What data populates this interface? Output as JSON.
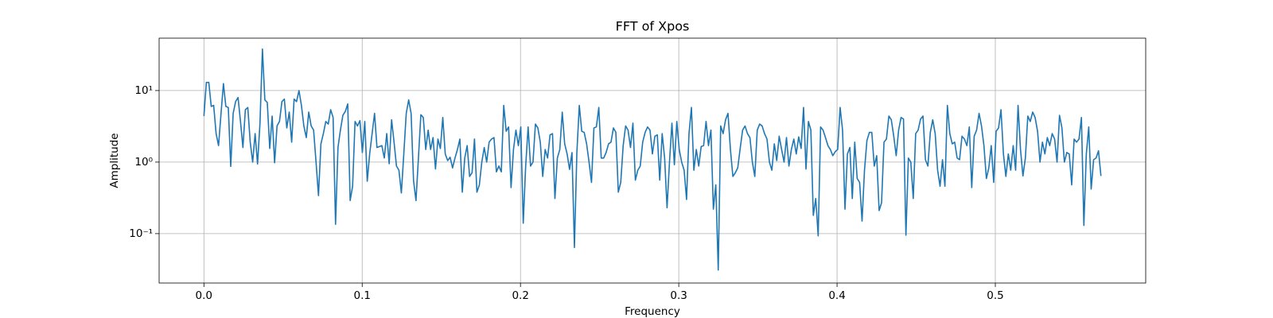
{
  "chart_data": {
    "type": "line",
    "title": "FFT of Xpos",
    "x_label": "Frequency",
    "y_label": "Amplitude",
    "yscale": "log",
    "grid": true,
    "xlim": [
      -0.0283,
      0.595
    ],
    "ylim": [
      0.0204,
      54
    ],
    "xticks": [
      {
        "value": 0,
        "label": "0.0"
      },
      {
        "value": 0.1,
        "label": "0.1"
      },
      {
        "value": 0.2,
        "label": "0.2"
      },
      {
        "value": 0.3,
        "label": "0.3"
      },
      {
        "value": 0.4,
        "label": "0.4"
      },
      {
        "value": 0.5,
        "label": "0.5"
      }
    ],
    "yticks": [
      {
        "value": 0.1,
        "label": "10⁻¹"
      },
      {
        "value": 1,
        "label": "10⁰"
      },
      {
        "value": 10,
        "label": "10¹"
      }
    ],
    "x": [
      0,
      0.00154,
      0.00308,
      0.00462,
      0.00616,
      0.0077,
      0.00924,
      0.01078,
      0.01232,
      0.01386,
      0.0154,
      0.01694,
      0.01848,
      0.02002,
      0.02156,
      0.0231,
      0.02464,
      0.02618,
      0.02772,
      0.02926,
      0.0308,
      0.03234,
      0.03388,
      0.03542,
      0.03696,
      0.0385,
      0.04004,
      0.04158,
      0.04312,
      0.04466,
      0.0462,
      0.04774,
      0.04928,
      0.05082,
      0.05236,
      0.0539,
      0.05544,
      0.05698,
      0.05852,
      0.06006,
      0.0616,
      0.06314,
      0.06468,
      0.06622,
      0.06776,
      0.0693,
      0.07084,
      0.07238,
      0.07392,
      0.07546,
      0.077,
      0.07854,
      0.08008,
      0.08162,
      0.08316,
      0.0847,
      0.08624,
      0.08778,
      0.08932,
      0.09086,
      0.0924,
      0.09394,
      0.09548,
      0.09702,
      0.09856,
      0.1001,
      0.10164,
      0.10318,
      0.10472,
      0.10626,
      0.1078,
      0.10934,
      0.11088,
      0.11242,
      0.11396,
      0.1155,
      0.11704,
      0.11858,
      0.12012,
      0.12166,
      0.1232,
      0.12474,
      0.12628,
      0.12782,
      0.12936,
      0.1309,
      0.13244,
      0.13398,
      0.13552,
      0.13706,
      0.1386,
      0.14014,
      0.14168,
      0.14322,
      0.14476,
      0.1463,
      0.14784,
      0.14938,
      0.15092,
      0.15246,
      0.154,
      0.15554,
      0.15708,
      0.15862,
      0.16016,
      0.1617,
      0.16324,
      0.16478,
      0.16632,
      0.16786,
      0.1694,
      0.17094,
      0.17248,
      0.17402,
      0.17556,
      0.1771,
      0.17864,
      0.18018,
      0.18172,
      0.18326,
      0.1848,
      0.18634,
      0.18788,
      0.18942,
      0.19096,
      0.1925,
      0.19404,
      0.19558,
      0.19712,
      0.19866,
      0.2002,
      0.20174,
      0.20328,
      0.20482,
      0.20636,
      0.2079,
      0.20944,
      0.21098,
      0.21252,
      0.21406,
      0.2156,
      0.21714,
      0.21868,
      0.22022,
      0.22176,
      0.2233,
      0.22484,
      0.22638,
      0.22792,
      0.22946,
      0.231,
      0.23254,
      0.23408,
      0.23562,
      0.23716,
      0.2387,
      0.24024,
      0.24178,
      0.24332,
      0.24486,
      0.2464,
      0.24794,
      0.24948,
      0.25102,
      0.25256,
      0.2541,
      0.25564,
      0.25718,
      0.25872,
      0.26026,
      0.2618,
      0.26334,
      0.26488,
      0.26642,
      0.26796,
      0.2695,
      0.27104,
      0.27258,
      0.27412,
      0.27566,
      0.2772,
      0.27874,
      0.28028,
      0.28182,
      0.28336,
      0.2849,
      0.28644,
      0.28798,
      0.28952,
      0.29106,
      0.2926,
      0.29414,
      0.29568,
      0.29722,
      0.29876,
      0.3003,
      0.30184,
      0.30338,
      0.30492,
      0.30646,
      0.308,
      0.30954,
      0.31108,
      0.31262,
      0.31416,
      0.3157,
      0.31724,
      0.31878,
      0.32032,
      0.32186,
      0.3234,
      0.32494,
      0.32648,
      0.32802,
      0.32956,
      0.3311,
      0.33264,
      0.33418,
      0.33572,
      0.33726,
      0.3388,
      0.34034,
      0.34188,
      0.34342,
      0.34496,
      0.3465,
      0.34804,
      0.34958,
      0.35112,
      0.35266,
      0.3542,
      0.35574,
      0.35728,
      0.35882,
      0.36036,
      0.3619,
      0.36344,
      0.36498,
      0.36652,
      0.36806,
      0.3696,
      0.37114,
      0.37268,
      0.37422,
      0.37576,
      0.3773,
      0.37884,
      0.38038,
      0.38192,
      0.38346,
      0.385,
      0.38654,
      0.38808,
      0.38962,
      0.39116,
      0.3927,
      0.39424,
      0.39578,
      0.39732,
      0.39886,
      0.4004,
      0.40194,
      0.40348,
      0.40502,
      0.40656,
      0.4081,
      0.40964,
      0.41118,
      0.41272,
      0.41426,
      0.4158,
      0.41734,
      0.41888,
      0.42042,
      0.42196,
      0.4235,
      0.42504,
      0.42658,
      0.42812,
      0.42966,
      0.4312,
      0.43274,
      0.43428,
      0.43582,
      0.43736,
      0.4389,
      0.44044,
      0.44198,
      0.44352,
      0.44506,
      0.4466,
      0.44814,
      0.44968,
      0.45122,
      0.45276,
      0.4543,
      0.45584,
      0.45738,
      0.45892,
      0.46046,
      0.462,
      0.46354,
      0.46508,
      0.46662,
      0.46816,
      0.4697,
      0.47124,
      0.47278,
      0.47432,
      0.47586,
      0.4774,
      0.47894,
      0.48048,
      0.48202,
      0.48356,
      0.4851,
      0.48664,
      0.48818,
      0.48972,
      0.49126,
      0.4928,
      0.49434,
      0.49588,
      0.49742,
      0.49896,
      0.5005,
      0.50204,
      0.50358,
      0.50512,
      0.50666,
      0.5082,
      0.50974,
      0.51128,
      0.51282,
      0.51436,
      0.5159,
      0.51744,
      0.51898,
      0.52052,
      0.52206,
      0.5236,
      0.52514,
      0.52668,
      0.52822,
      0.52976,
      0.5313,
      0.53284,
      0.53438,
      0.53592,
      0.53746,
      0.539,
      0.54054,
      0.54208,
      0.54362,
      0.54516,
      0.5467,
      0.54824,
      0.54978,
      0.55132,
      0.55286,
      0.5544,
      0.55594,
      0.55748,
      0.55902,
      0.56056,
      0.5621,
      0.56364,
      0.56518,
      0.56672
    ],
    "series": [
      {
        "color": "#1f77b4",
        "values": [
          4.4,
          13,
          13,
          6,
          6.2,
          2.5,
          1.7,
          4.7,
          12.5,
          6,
          5.8,
          0.87,
          4.8,
          7,
          8,
          3.7,
          1.6,
          5.4,
          5.8,
          1.9,
          1,
          2.5,
          0.94,
          3.5,
          38,
          7.4,
          6.8,
          1.55,
          4.4,
          0.98,
          3.2,
          3.7,
          7,
          7.6,
          3,
          5,
          1.9,
          7.6,
          7,
          10,
          6.2,
          3.2,
          2.2,
          5,
          3.2,
          2.8,
          1,
          0.34,
          1.8,
          2.5,
          3.7,
          3.4,
          5.4,
          4.2,
          0.135,
          1.6,
          2.8,
          4.5,
          5.1,
          6.5,
          0.29,
          0.46,
          3.7,
          3.2,
          3.8,
          1.36,
          3.7,
          0.54,
          1.3,
          2.5,
          4.8,
          1.6,
          1.65,
          1.7,
          1.14,
          2.5,
          0.95,
          3.9,
          1.9,
          0.88,
          0.77,
          0.37,
          1.3,
          4.8,
          7.4,
          4.8,
          0.55,
          0.29,
          1.14,
          4.6,
          4.2,
          1.5,
          2.8,
          1.5,
          2.2,
          0.8,
          2.1,
          1.55,
          4.2,
          1.3,
          1.05,
          1.17,
          0.83,
          1.14,
          1.5,
          2.1,
          0.38,
          1.14,
          1.7,
          0.63,
          0.71,
          2.1,
          0.38,
          0.48,
          1,
          1.6,
          1,
          1.9,
          2.1,
          2.2,
          0.73,
          0.88,
          0.73,
          6.2,
          2.7,
          3.1,
          0.44,
          1.5,
          2.8,
          1.7,
          3.1,
          0.14,
          0.88,
          3.1,
          0.88,
          1,
          3.4,
          3,
          1.9,
          0.63,
          1.5,
          1.14,
          2.4,
          2.5,
          0.31,
          1.14,
          1.5,
          5,
          1.8,
          1.3,
          0.79,
          1.36,
          0.064,
          1.36,
          6.2,
          2.7,
          2.6,
          1.8,
          1,
          0.52,
          3,
          3.1,
          5.8,
          1.14,
          1.14,
          1.36,
          1.8,
          1.9,
          3,
          2.6,
          0.38,
          0.52,
          1.7,
          3.2,
          2.8,
          1.6,
          3.5,
          0.56,
          0.77,
          0.88,
          1.9,
          2.6,
          3.1,
          2.8,
          1.3,
          2.3,
          2.4,
          0.56,
          2.5,
          1.14,
          0.23,
          1,
          3.5,
          0.92,
          3.7,
          1.5,
          1,
          0.77,
          0.3,
          2.5,
          5.8,
          0.77,
          1.5,
          0.88,
          1.65,
          1.7,
          3.7,
          1.7,
          2.8,
          0.22,
          0.48,
          0.031,
          3.2,
          2.5,
          3.9,
          4.8,
          1.5,
          0.63,
          0.71,
          0.83,
          1.55,
          2.8,
          3.2,
          2.5,
          2.2,
          1,
          0.63,
          2.8,
          3.4,
          3.2,
          2.5,
          2.1,
          1,
          0.77,
          1.8,
          1.05,
          2.3,
          1.5,
          1,
          2.2,
          0.88,
          1.5,
          2.1,
          1.3,
          2.25,
          1.55,
          5.8,
          0.8,
          3.7,
          2.8,
          0.18,
          0.31,
          0.093,
          3.1,
          2.8,
          2.2,
          1.7,
          1.5,
          1.23,
          1.4,
          1.5,
          5.8,
          2.8,
          0.22,
          1.3,
          1.6,
          0.31,
          1.9,
          0.59,
          0.52,
          0.15,
          0.77,
          2,
          2.6,
          2.6,
          0.88,
          1.23,
          0.21,
          0.27,
          1.9,
          2.1,
          4.4,
          3.9,
          2.3,
          1.23,
          2.8,
          4.2,
          4,
          0.095,
          1.14,
          1,
          0.31,
          2.5,
          2.8,
          4,
          4.4,
          1.08,
          0.88,
          2.6,
          3.9,
          2.5,
          0.77,
          0.46,
          1.08,
          0.46,
          6.2,
          2.5,
          1.8,
          1.9,
          1.14,
          1.08,
          2.3,
          2.1,
          1.7,
          3.1,
          0.44,
          2.3,
          2.8,
          4.8,
          3.2,
          1.7,
          0.59,
          0.83,
          1.7,
          0.52,
          2.7,
          3,
          5.4,
          1.3,
          0.63,
          1.3,
          0.77,
          1.7,
          0.77,
          6.2,
          1.5,
          0.64,
          1.14,
          4.4,
          3.7,
          5,
          4.2,
          2.7,
          1,
          1.9,
          1.3,
          2.2,
          1.7,
          2.5,
          2.1,
          1,
          4.5,
          3,
          1,
          1.36,
          1.3,
          0.48,
          2.1,
          1.9,
          2.1,
          4.2,
          0.13,
          1.3,
          3.1,
          0.42,
          1.08,
          1.14,
          1.44,
          0.64
        ]
      }
    ]
  }
}
